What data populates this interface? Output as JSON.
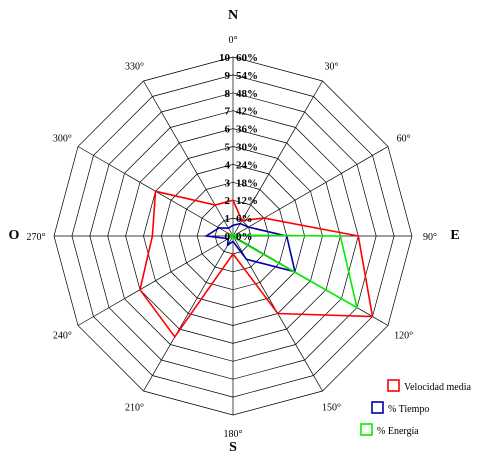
{
  "chart_data": {
    "type": "radar",
    "cardinals": {
      "north": "N",
      "east": "E",
      "south": "S",
      "west": "O"
    },
    "angle_labels": [
      "0°",
      "30°",
      "60°",
      "90°",
      "120°",
      "150°",
      "180°",
      "210°",
      "240°",
      "270°",
      "300°",
      "330°"
    ],
    "directions_deg": [
      0,
      30,
      60,
      90,
      120,
      150,
      180,
      210,
      240,
      270,
      300,
      330
    ],
    "rings": [
      {
        "left": "0",
        "right": "0%"
      },
      {
        "left": "1",
        "right": "6%"
      },
      {
        "left": "2",
        "right": "12%"
      },
      {
        "left": "3",
        "right": "18%"
      },
      {
        "left": "4",
        "right": "24%"
      },
      {
        "left": "5",
        "right": "30%"
      },
      {
        "left": "6",
        "right": "36%"
      },
      {
        "left": "7",
        "right": "42%"
      },
      {
        "left": "8",
        "right": "48%"
      },
      {
        "left": "9",
        "right": "54%"
      },
      {
        "left": "10",
        "right": "60%"
      }
    ],
    "rmax": 10,
    "grid": true,
    "legend_position": "bottom-right",
    "series": [
      {
        "name": "Velocidad media",
        "color": "#ff0000",
        "directions_deg": [
          0,
          30,
          60,
          90,
          120,
          150,
          180,
          210,
          240,
          270,
          300,
          330
        ],
        "values": [
          2.0,
          1.0,
          2.0,
          7.0,
          9.0,
          5.0,
          1.0,
          6.5,
          6.0,
          4.5,
          5.0,
          2.0
        ]
      },
      {
        "name": "% Tiempo",
        "color": "#0000aa",
        "directions_deg": [
          0,
          30,
          60,
          90,
          120,
          150,
          180,
          210,
          240,
          270,
          300,
          330
        ],
        "values": [
          0.6,
          0.8,
          1.0,
          3.0,
          4.0,
          1.5,
          0.3,
          0.6,
          0.3,
          1.5,
          0.9,
          0.5
        ]
      },
      {
        "name": "% Energía",
        "color": "#00ee00",
        "directions_deg": [
          0,
          30,
          60,
          90,
          120,
          150,
          180,
          210,
          240,
          270,
          300,
          330
        ],
        "values": [
          0.1,
          0.0,
          0.1,
          6.0,
          8.0,
          0.1,
          0.1,
          0.1,
          0.1,
          0.2,
          0.1,
          0.1
        ]
      }
    ]
  }
}
